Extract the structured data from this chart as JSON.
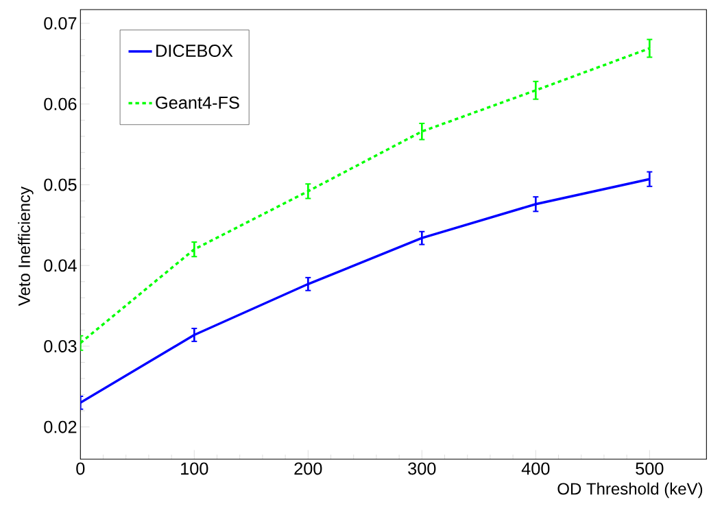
{
  "chart_data": {
    "type": "line",
    "xlabel": "OD Threshold (keV)",
    "ylabel": "Veto Inefficiency",
    "x": [
      0,
      100,
      200,
      300,
      400,
      500
    ],
    "series": [
      {
        "name": "DICEBOX",
        "color": "#0000ff",
        "line_style": "solid",
        "values": [
          0.023,
          0.0314,
          0.0377,
          0.0434,
          0.0476,
          0.0507
        ],
        "errors": [
          0.0008,
          0.0008,
          0.0008,
          0.0008,
          0.0009,
          0.0009
        ]
      },
      {
        "name": "Geant4-FS",
        "color": "#00ff00",
        "line_style": "dotted",
        "values": [
          0.0304,
          0.042,
          0.0492,
          0.0566,
          0.0617,
          0.0669
        ],
        "errors": [
          0.0009,
          0.0009,
          0.0009,
          0.001,
          0.0011,
          0.0011
        ]
      }
    ],
    "xlim": [
      0,
      550
    ],
    "ylim": [
      0.016,
      0.0717
    ],
    "xticks": [
      0,
      100,
      200,
      300,
      400,
      500
    ],
    "yticks": [
      {
        "value": 0.02,
        "label": "0.02"
      },
      {
        "value": 0.03,
        "label": "0.03"
      },
      {
        "value": 0.04,
        "label": "0.04"
      },
      {
        "value": 0.05,
        "label": "0.05"
      },
      {
        "value": 0.06,
        "label": "0.06"
      },
      {
        "value": 0.07,
        "label": "0.07"
      }
    ],
    "legend": "top left",
    "grid": false,
    "marker": "none"
  }
}
